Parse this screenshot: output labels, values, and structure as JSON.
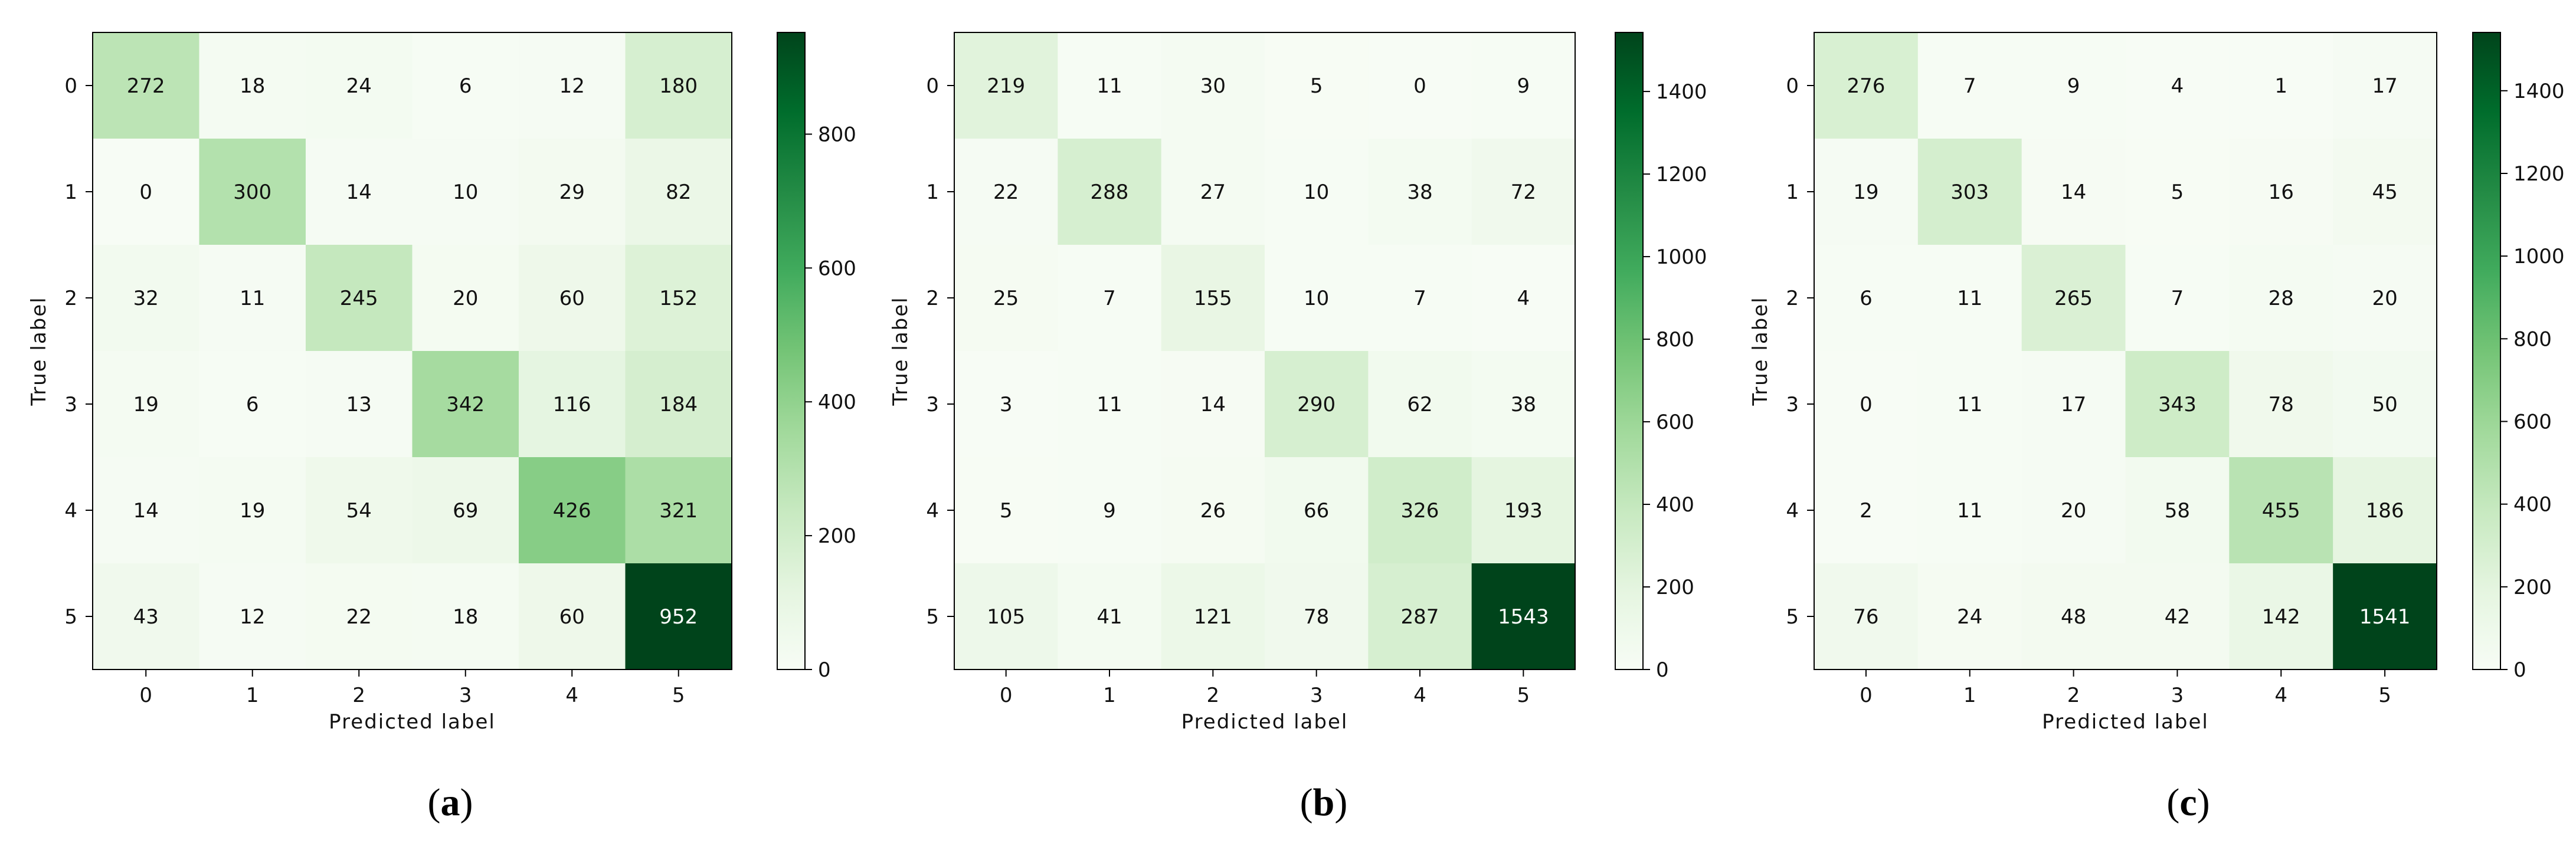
{
  "chart_data": [
    {
      "type": "heatmap",
      "caption_open": "(",
      "caption_letter": "a",
      "caption_close": ")",
      "xlabel": "Predicted label",
      "ylabel": "True label",
      "x_ticks": [
        "0",
        "1",
        "2",
        "3",
        "4",
        "5"
      ],
      "y_ticks": [
        "0",
        "1",
        "2",
        "3",
        "4",
        "5"
      ],
      "matrix": [
        [
          272,
          18,
          24,
          6,
          12,
          180
        ],
        [
          0,
          300,
          14,
          10,
          29,
          82
        ],
        [
          32,
          11,
          245,
          20,
          60,
          152
        ],
        [
          19,
          6,
          13,
          342,
          116,
          184
        ],
        [
          14,
          19,
          54,
          69,
          426,
          321
        ],
        [
          43,
          12,
          22,
          18,
          60,
          952
        ]
      ],
      "colorbar_range": [
        0,
        952
      ],
      "colorbar_ticks": [
        0,
        200,
        400,
        600,
        800
      ],
      "colormap": "Greens",
      "color_low": "#f7fcf5",
      "color_high": "#00441b"
    },
    {
      "type": "heatmap",
      "caption_open": "(",
      "caption_letter": "b",
      "caption_close": ")",
      "xlabel": "Predicted label",
      "ylabel": "True label",
      "x_ticks": [
        "0",
        "1",
        "2",
        "3",
        "4",
        "5"
      ],
      "y_ticks": [
        "0",
        "1",
        "2",
        "3",
        "4",
        "5"
      ],
      "matrix": [
        [
          219,
          11,
          30,
          5,
          0,
          9
        ],
        [
          22,
          288,
          27,
          10,
          38,
          72
        ],
        [
          25,
          7,
          155,
          10,
          7,
          4
        ],
        [
          3,
          11,
          14,
          290,
          62,
          38
        ],
        [
          5,
          9,
          26,
          66,
          326,
          193
        ],
        [
          105,
          41,
          121,
          78,
          287,
          1543
        ]
      ],
      "colorbar_range": [
        0,
        1543
      ],
      "colorbar_ticks": [
        0,
        200,
        400,
        600,
        800,
        1000,
        1200,
        1400
      ],
      "colormap": "Greens",
      "color_low": "#f7fcf5",
      "color_high": "#00441b"
    },
    {
      "type": "heatmap",
      "caption_open": "(",
      "caption_letter": "c",
      "caption_close": ")",
      "xlabel": "Predicted label",
      "ylabel": "True label",
      "x_ticks": [
        "0",
        "1",
        "2",
        "3",
        "4",
        "5"
      ],
      "y_ticks": [
        "0",
        "1",
        "2",
        "3",
        "4",
        "5"
      ],
      "matrix": [
        [
          276,
          7,
          9,
          4,
          1,
          17
        ],
        [
          19,
          303,
          14,
          5,
          16,
          45
        ],
        [
          6,
          11,
          265,
          7,
          28,
          20
        ],
        [
          0,
          11,
          17,
          343,
          78,
          50
        ],
        [
          2,
          11,
          20,
          58,
          455,
          186
        ],
        [
          76,
          24,
          48,
          42,
          142,
          1541
        ]
      ],
      "colorbar_range": [
        0,
        1541
      ],
      "colorbar_ticks": [
        0,
        200,
        400,
        600,
        800,
        1000,
        1200,
        1400
      ],
      "colormap": "Greens",
      "color_low": "#f7fcf5",
      "color_high": "#00441b"
    }
  ]
}
